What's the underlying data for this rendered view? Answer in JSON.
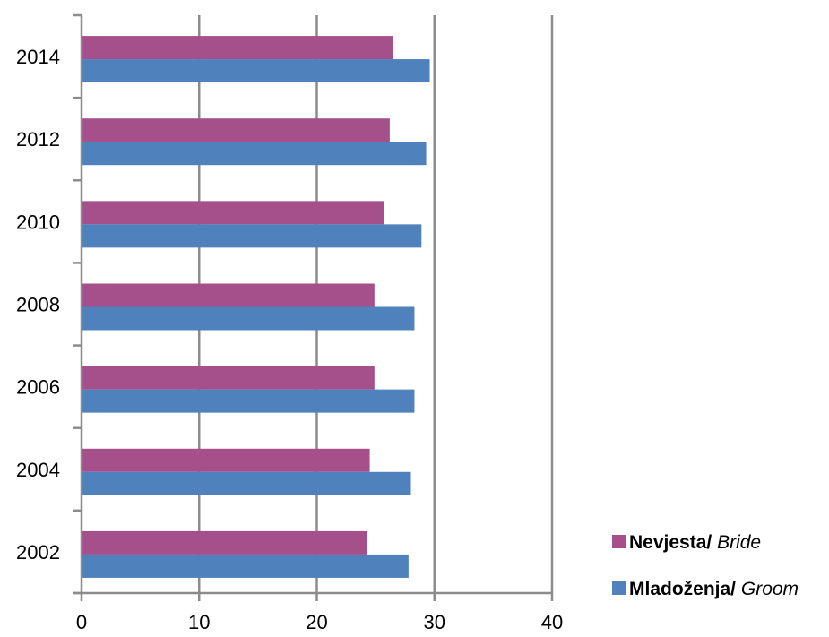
{
  "chart_data": {
    "type": "bar",
    "orientation": "horizontal",
    "categories": [
      "2002",
      "2004",
      "2006",
      "2008",
      "2010",
      "2012",
      "2014"
    ],
    "series": [
      {
        "name": "Nevjesta/ Bride",
        "name_bold": "Nevjesta",
        "name_separator": "/ ",
        "name_italic": "Bride",
        "color": "#A5508B",
        "values": [
          24.3,
          24.5,
          24.9,
          24.9,
          25.7,
          26.2,
          26.5
        ]
      },
      {
        "name": "Mladoženja/ Groom",
        "name_bold": "Mladoženja",
        "name_separator": "/ ",
        "name_italic": "Groom",
        "color": "#4F81BD",
        "values": [
          27.8,
          28.0,
          28.3,
          28.3,
          28.9,
          29.3,
          29.6
        ]
      }
    ],
    "xlim": [
      0,
      40
    ],
    "xticks": [
      "0",
      "10",
      "20",
      "30",
      "40"
    ],
    "grid": "vertical major gridlines",
    "legend_position": "right-bottom",
    "title": "",
    "xlabel": "",
    "ylabel": ""
  }
}
